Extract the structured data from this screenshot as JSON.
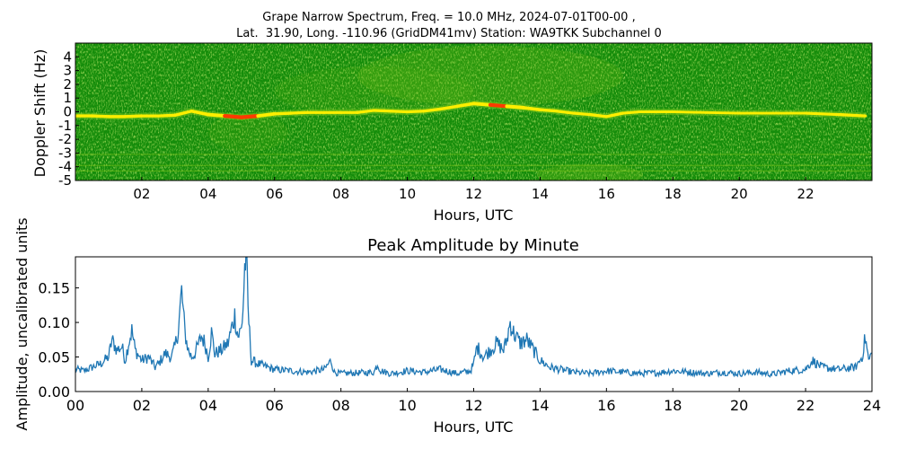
{
  "figure": {
    "title_line1": "Grape Narrow Spectrum, Freq. = 10.0 MHz, 2024-07-01T00-00 ,",
    "title_line2": "Lat.  31.90, Long. -110.96 (GridDM41mv) Station: WA9TKK Subchannel 0"
  },
  "chart_data": [
    {
      "type": "heatmap",
      "title": "",
      "xlabel": "Hours, UTC",
      "ylabel": "Doppler Shift (Hz)",
      "xlim": [
        0,
        24
      ],
      "ylim": [
        -5,
        5
      ],
      "x_ticks": [
        "02",
        "04",
        "06",
        "08",
        "10",
        "12",
        "14",
        "16",
        "18",
        "20",
        "22"
      ],
      "x_tick_values": [
        2,
        4,
        6,
        8,
        10,
        12,
        14,
        16,
        18,
        20,
        22
      ],
      "y_ticks": [
        "4",
        "3",
        "2",
        "1",
        "0",
        "-1",
        "-2",
        "-3",
        "-4",
        "-5"
      ],
      "y_tick_values": [
        4,
        3,
        2,
        1,
        0,
        -1,
        -2,
        -3,
        -4,
        -5
      ],
      "colors": {
        "background": "#148c0a",
        "mid": "#7cc41a",
        "peak": "#ffee00",
        "hot": "#ff3a00"
      },
      "carrier_trace": {
        "hours": [
          0,
          0.5,
          1,
          1.5,
          2,
          2.5,
          3,
          3.5,
          4,
          4.5,
          5,
          5.5,
          6,
          6.5,
          7,
          7.5,
          8,
          8.5,
          9,
          9.5,
          10,
          10.5,
          11,
          11.5,
          12,
          12.5,
          13,
          13.5,
          14,
          14.5,
          15,
          15.5,
          16,
          16.5,
          17,
          18,
          19,
          20,
          21,
          22,
          23,
          23.8
        ],
        "doppler_hz": [
          -0.3,
          -0.3,
          -0.35,
          -0.35,
          -0.3,
          -0.3,
          -0.25,
          0.05,
          -0.2,
          -0.3,
          -0.4,
          -0.3,
          -0.15,
          -0.1,
          -0.05,
          -0.05,
          -0.05,
          -0.05,
          0.1,
          0.05,
          0.0,
          0.05,
          0.2,
          0.4,
          0.6,
          0.5,
          0.4,
          0.3,
          0.15,
          0.05,
          -0.1,
          -0.2,
          -0.35,
          -0.1,
          0.0,
          0.0,
          -0.05,
          -0.1,
          -0.1,
          -0.1,
          -0.2,
          -0.3
        ],
        "intensity": [
          0.55,
          0.55,
          0.6,
          0.6,
          0.5,
          0.5,
          0.5,
          0.6,
          0.7,
          0.85,
          1.0,
          0.85,
          0.6,
          0.5,
          0.45,
          0.45,
          0.45,
          0.45,
          0.5,
          0.5,
          0.45,
          0.5,
          0.55,
          0.6,
          0.7,
          0.8,
          0.85,
          0.75,
          0.6,
          0.5,
          0.45,
          0.5,
          0.55,
          0.45,
          0.4,
          0.35,
          0.35,
          0.35,
          0.35,
          0.4,
          0.45,
          0.55
        ]
      }
    },
    {
      "type": "line",
      "title": "Peak Amplitude by Minute",
      "xlabel": "Hours, UTC",
      "ylabel": "Amplitude, uncalibrated units",
      "xlim": [
        0,
        24
      ],
      "ylim": [
        0,
        0.195
      ],
      "x_ticks": [
        "00",
        "02",
        "04",
        "06",
        "08",
        "10",
        "12",
        "14",
        "16",
        "18",
        "20",
        "22",
        "24"
      ],
      "x_tick_values": [
        0,
        2,
        4,
        6,
        8,
        10,
        12,
        14,
        16,
        18,
        20,
        22,
        24
      ],
      "y_ticks": [
        "0.00",
        "0.05",
        "0.10",
        "0.15"
      ],
      "y_tick_values": [
        0,
        0.05,
        0.1,
        0.15
      ],
      "line_color": "#1f77b4",
      "series": [
        {
          "x": [
            0,
            0.25,
            0.5,
            0.75,
            1.0,
            1.1,
            1.25,
            1.4,
            1.5,
            1.6,
            1.7,
            1.8,
            2.0,
            2.2,
            2.4,
            2.5,
            2.7,
            2.9,
            3.0,
            3.1,
            3.2,
            3.3,
            3.4,
            3.5,
            3.6,
            3.8,
            3.9,
            4.0,
            4.1,
            4.2,
            4.4,
            4.6,
            4.8,
            4.9,
            5.0,
            5.05,
            5.1,
            5.15,
            5.2,
            5.3,
            5.5,
            5.8,
            6.0,
            6.5,
            7.0,
            7.5,
            7.7,
            7.8,
            8.0,
            8.5,
            9.0,
            9.1,
            9.2,
            9.5,
            10.0,
            10.5,
            11.0,
            11.5,
            11.9,
            12.0,
            12.1,
            12.3,
            12.5,
            12.7,
            12.9,
            13.0,
            13.1,
            13.2,
            13.4,
            13.6,
            13.8,
            14.0,
            14.3,
            14.6,
            15.0,
            15.5,
            16.0,
            16.5,
            17.0,
            17.5,
            18.0,
            18.5,
            19.0,
            19.5,
            20.0,
            20.5,
            21.0,
            21.5,
            22.0,
            22.2,
            22.5,
            23.0,
            23.5,
            23.7,
            23.8,
            23.9,
            24.0
          ],
          "y": [
            0.032,
            0.03,
            0.035,
            0.04,
            0.05,
            0.075,
            0.06,
            0.065,
            0.045,
            0.07,
            0.088,
            0.06,
            0.045,
            0.05,
            0.035,
            0.04,
            0.055,
            0.05,
            0.065,
            0.09,
            0.145,
            0.085,
            0.06,
            0.05,
            0.055,
            0.08,
            0.07,
            0.05,
            0.085,
            0.055,
            0.06,
            0.07,
            0.11,
            0.08,
            0.09,
            0.12,
            0.18,
            0.195,
            0.12,
            0.045,
            0.04,
            0.035,
            0.032,
            0.03,
            0.028,
            0.032,
            0.045,
            0.028,
            0.026,
            0.027,
            0.028,
            0.04,
            0.03,
            0.026,
            0.03,
            0.028,
            0.032,
            0.026,
            0.03,
            0.04,
            0.065,
            0.05,
            0.06,
            0.07,
            0.06,
            0.075,
            0.1,
            0.085,
            0.07,
            0.075,
            0.06,
            0.045,
            0.035,
            0.032,
            0.028,
            0.026,
            0.03,
            0.028,
            0.026,
            0.027,
            0.03,
            0.028,
            0.026,
            0.028,
            0.026,
            0.028,
            0.025,
            0.03,
            0.032,
            0.045,
            0.035,
            0.032,
            0.035,
            0.05,
            0.078,
            0.045,
            0.055
          ]
        }
      ]
    }
  ]
}
